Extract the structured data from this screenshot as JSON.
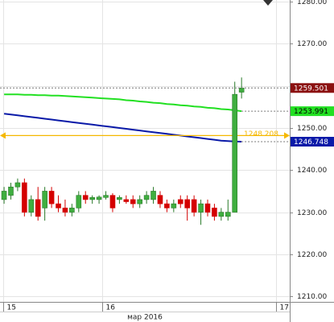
{
  "chart_data": {
    "type": "candlestick",
    "x": [
      0,
      1,
      2,
      3,
      4,
      5,
      6,
      7,
      8,
      9,
      10,
      11,
      12,
      13,
      14,
      15,
      16,
      17,
      18,
      19,
      20,
      21,
      22,
      23,
      24,
      25,
      26,
      27,
      28,
      29,
      30,
      31,
      32,
      33,
      34,
      35
    ],
    "open": [
      1233,
      1234,
      1236,
      1237,
      1230,
      1233,
      1231,
      1235,
      1232,
      1231,
      1230,
      1231,
      1234,
      1233,
      1233,
      1233.5,
      1234,
      1233,
      1233,
      1233,
      1232,
      1233,
      1233,
      1234,
      1232,
      1231,
      1233,
      1233,
      1233,
      1230,
      1232,
      1231,
      1229,
      1229,
      1230,
      1258.5
    ],
    "high": [
      1236,
      1237,
      1238,
      1238,
      1234,
      1236,
      1236,
      1236,
      1234,
      1233,
      1232,
      1235,
      1235,
      1234,
      1234,
      1235,
      1234.5,
      1234,
      1234,
      1234,
      1234,
      1235,
      1236,
      1235,
      1233,
      1233,
      1234,
      1234,
      1234,
      1233,
      1233,
      1232,
      1231,
      1233,
      1261,
      1262
    ],
    "low": [
      1232,
      1233,
      1235,
      1229,
      1229,
      1228,
      1228,
      1231,
      1230,
      1229,
      1229,
      1230,
      1232,
      1232,
      1232,
      1233,
      1230,
      1232,
      1232,
      1231,
      1231,
      1232,
      1232,
      1231,
      1230,
      1230,
      1231,
      1228,
      1229,
      1227,
      1229,
      1228,
      1228,
      1228,
      1230,
      1257
    ],
    "close": [
      1235,
      1236,
      1237,
      1230,
      1233,
      1229,
      1235,
      1232,
      1231,
      1230,
      1231,
      1234,
      1233,
      1233.5,
      1233.6,
      1234,
      1231,
      1233.5,
      1232.5,
      1232,
      1233,
      1234,
      1235,
      1232,
      1231,
      1232,
      1232,
      1231,
      1230,
      1232,
      1230,
      1229,
      1230,
      1230,
      1258,
      1259.501
    ],
    "up_color": "#3fae3f",
    "down_color": "#d40000",
    "last_price_color": "#8b1010",
    "series": [
      {
        "color": "#22e022",
        "values": [
          1258.0,
          1258.0,
          1258.0,
          1257.9,
          1257.9,
          1257.8,
          1257.8,
          1257.7,
          1257.7,
          1257.6,
          1257.5,
          1257.4,
          1257.3,
          1257.2,
          1257.1,
          1257.0,
          1256.9,
          1256.8,
          1256.6,
          1256.5,
          1256.3,
          1256.2,
          1256.0,
          1255.9,
          1255.7,
          1255.6,
          1255.4,
          1255.3,
          1255.1,
          1255.0,
          1254.8,
          1254.7,
          1254.5,
          1254.4,
          1254.2,
          1253.991
        ]
      },
      {
        "color": "#0a1aa8",
        "values": [
          1253.4,
          1253.2,
          1253.0,
          1252.8,
          1252.6,
          1252.4,
          1252.2,
          1252.0,
          1251.8,
          1251.6,
          1251.4,
          1251.2,
          1251.0,
          1250.8,
          1250.6,
          1250.4,
          1250.2,
          1250.0,
          1249.8,
          1249.6,
          1249.4,
          1249.2,
          1249.0,
          1248.8,
          1248.6,
          1248.4,
          1248.2,
          1248.0,
          1247.8,
          1247.6,
          1247.4,
          1247.2,
          1247.0,
          1246.9,
          1246.8,
          1246.748
        ]
      }
    ],
    "level": {
      "value": 1248.208,
      "color": "#f5b800"
    },
    "xlim": [
      -0.6,
      42.1
    ],
    "xticks": [
      {
        "value": -0.1,
        "label": "15"
      },
      {
        "value": 14.5,
        "label": "16"
      },
      {
        "value": 40.1,
        "label": "17"
      }
    ],
    "x_label": "мар 2016",
    "ylim": [
      1208.7,
      1280.4
    ],
    "yticks": [
      {
        "value": 1210,
        "label": "1210.00"
      },
      {
        "value": 1220,
        "label": "1220.00"
      },
      {
        "value": 1230,
        "label": "1230.00"
      },
      {
        "value": 1240,
        "label": "1240.00"
      },
      {
        "value": 1250,
        "label": "1250.00"
      },
      {
        "value": 1260,
        "label": "1260.00"
      },
      {
        "value": 1270,
        "label": "1270.00"
      },
      {
        "value": 1280,
        "label": "1280.00"
      }
    ],
    "grid": true
  }
}
